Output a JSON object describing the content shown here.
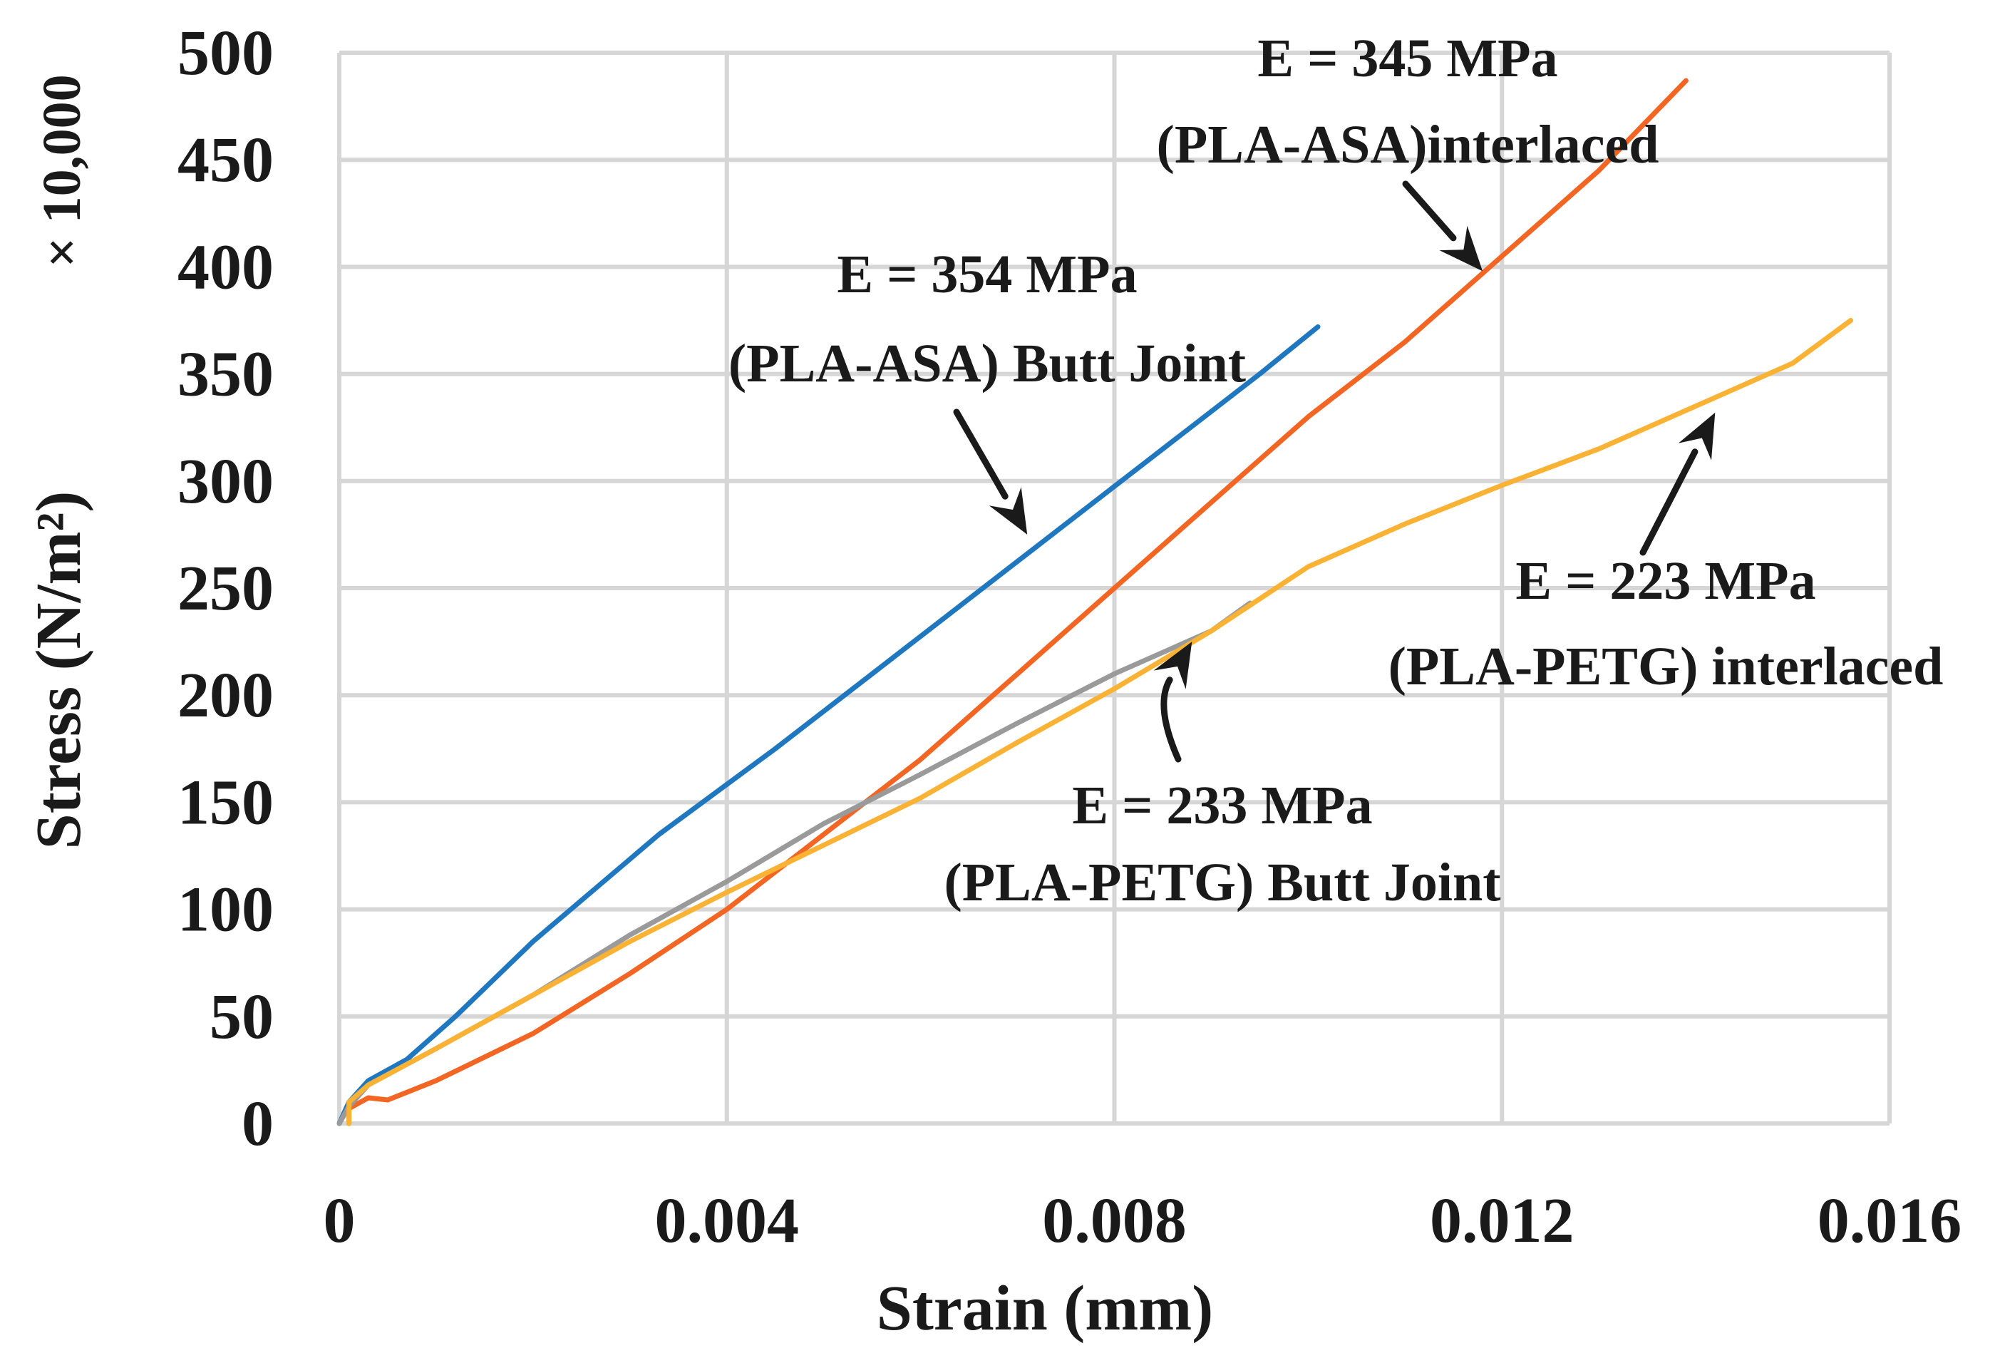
{
  "chart_data": {
    "type": "line",
    "title": "",
    "xlabel": "Strain (mm)",
    "ylabel": "Stress (N/m²)",
    "y_multiplier_label": "× 10,000",
    "xlim": [
      0,
      0.016
    ],
    "ylim": [
      0,
      500
    ],
    "x_ticks": [
      {
        "value": 0,
        "label": "0"
      },
      {
        "value": 0.004,
        "label": "0.004"
      },
      {
        "value": 0.008,
        "label": "0.008"
      },
      {
        "value": 0.012,
        "label": "0.012"
      },
      {
        "value": 0.016,
        "label": "0.016"
      }
    ],
    "y_ticks": [
      {
        "value": 0,
        "label": "0"
      },
      {
        "value": 50,
        "label": "50"
      },
      {
        "value": 100,
        "label": "100"
      },
      {
        "value": 150,
        "label": "150"
      },
      {
        "value": 200,
        "label": "200"
      },
      {
        "value": 250,
        "label": "250"
      },
      {
        "value": 300,
        "label": "300"
      },
      {
        "value": 350,
        "label": "350"
      },
      {
        "value": 400,
        "label": "400"
      },
      {
        "value": 450,
        "label": "450"
      },
      {
        "value": 500,
        "label": "500"
      }
    ],
    "grid": true,
    "legend": "none",
    "series": [
      {
        "name": "(PLA-ASA) Butt Joint",
        "color": "#1f77c0",
        "points": [
          [
            0,
            0
          ],
          [
            0.0001,
            10
          ],
          [
            0.0003,
            20
          ],
          [
            0.0007,
            30
          ],
          [
            0.0012,
            50
          ],
          [
            0.002,
            85
          ],
          [
            0.0033,
            135
          ],
          [
            0.0045,
            175
          ],
          [
            0.0055,
            210
          ],
          [
            0.0065,
            245
          ],
          [
            0.0075,
            280
          ],
          [
            0.0085,
            315
          ],
          [
            0.0095,
            350
          ],
          [
            0.0101,
            372
          ]
        ]
      },
      {
        "name": "(PLA-ASA) interlaced",
        "color": "#f26522",
        "points": [
          [
            0.0001,
            0
          ],
          [
            0.0001,
            7
          ],
          [
            0.0003,
            12
          ],
          [
            0.0005,
            11
          ],
          [
            0.001,
            20
          ],
          [
            0.002,
            42
          ],
          [
            0.003,
            70
          ],
          [
            0.004,
            100
          ],
          [
            0.005,
            135
          ],
          [
            0.006,
            170
          ],
          [
            0.007,
            210
          ],
          [
            0.008,
            250
          ],
          [
            0.009,
            290
          ],
          [
            0.01,
            330
          ],
          [
            0.011,
            365
          ],
          [
            0.012,
            405
          ],
          [
            0.013,
            445
          ],
          [
            0.0139,
            487
          ]
        ]
      },
      {
        "name": "(PLA-PETG) Butt Joint",
        "color": "#9a9a9a",
        "points": [
          [
            0,
            0
          ],
          [
            0.0001,
            8
          ],
          [
            0.0003,
            18
          ],
          [
            0.001,
            35
          ],
          [
            0.002,
            60
          ],
          [
            0.003,
            88
          ],
          [
            0.004,
            113
          ],
          [
            0.005,
            140
          ],
          [
            0.006,
            163
          ],
          [
            0.007,
            187
          ],
          [
            0.008,
            210
          ],
          [
            0.009,
            230
          ],
          [
            0.0094,
            243
          ]
        ]
      },
      {
        "name": "(PLA-PETG) interlaced",
        "color": "#f9b234",
        "points": [
          [
            0.0001,
            0
          ],
          [
            0.0001,
            10
          ],
          [
            0.0003,
            18
          ],
          [
            0.001,
            35
          ],
          [
            0.002,
            60
          ],
          [
            0.003,
            85
          ],
          [
            0.004,
            108
          ],
          [
            0.005,
            130
          ],
          [
            0.006,
            152
          ],
          [
            0.007,
            178
          ],
          [
            0.008,
            203
          ],
          [
            0.009,
            230
          ],
          [
            0.01,
            260
          ],
          [
            0.011,
            280
          ],
          [
            0.012,
            298
          ],
          [
            0.013,
            315
          ],
          [
            0.014,
            335
          ],
          [
            0.015,
            355
          ],
          [
            0.0156,
            375
          ]
        ]
      }
    ],
    "annotations": [
      {
        "lines": [
          "E = 354 MPa",
          "(PLA-ASA) Butt Joint"
        ],
        "arrow_to": [
          0.0071,
          275
        ]
      },
      {
        "lines": [
          "E = 345 MPa",
          "(PLA-ASA)interlaced"
        ],
        "arrow_to": [
          0.0118,
          398
        ]
      },
      {
        "lines": [
          "E = 223 MPa",
          "(PLA-PETG) interlaced"
        ],
        "arrow_to": [
          0.0142,
          332
        ]
      },
      {
        "lines": [
          "E = 233 MPa",
          "(PLA-PETG) Butt Joint"
        ],
        "arrow_to": [
          0.0088,
          225
        ]
      }
    ]
  }
}
